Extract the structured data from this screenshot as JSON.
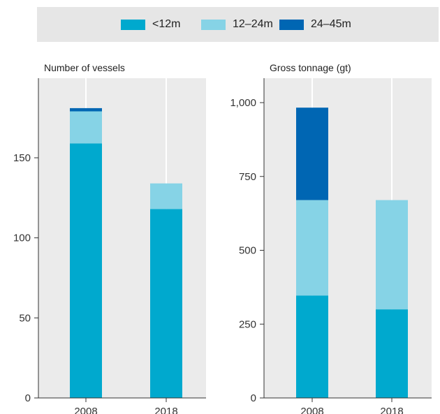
{
  "legend": [
    {
      "label": "<12m",
      "color": "#00a9ce"
    },
    {
      "label": "12–24m",
      "color": "#86d3e6"
    },
    {
      "label": "24–45m",
      "color": "#0066b3"
    }
  ],
  "chart_data": [
    {
      "type": "bar",
      "stacked": true,
      "title": "Number of vessels",
      "categories": [
        "2008",
        "2018"
      ],
      "series": [
        {
          "name": "<12m",
          "values": [
            159,
            118
          ]
        },
        {
          "name": "12–24m",
          "values": [
            20,
            16
          ]
        },
        {
          "name": "24–45m",
          "values": [
            2,
            0
          ]
        }
      ],
      "ylim": [
        0,
        190
      ],
      "yticks": [
        0,
        50,
        100,
        150
      ],
      "ytick_labels": [
        "0",
        "50",
        "100",
        "150"
      ],
      "grid": "vertical"
    },
    {
      "type": "bar",
      "stacked": true,
      "title": "Gross tonnage (gt)",
      "categories": [
        "2008",
        "2018"
      ],
      "series": [
        {
          "name": "<12m",
          "values": [
            347,
            300
          ]
        },
        {
          "name": "12–24m",
          "values": [
            323,
            370
          ]
        },
        {
          "name": "24–45m",
          "values": [
            313,
            0
          ]
        }
      ],
      "ylim": [
        0,
        1080
      ],
      "yticks": [
        0,
        250,
        500,
        750,
        1000
      ],
      "ytick_labels": [
        "0",
        "250",
        "500",
        "750",
        "1,000"
      ],
      "grid": "vertical"
    }
  ]
}
